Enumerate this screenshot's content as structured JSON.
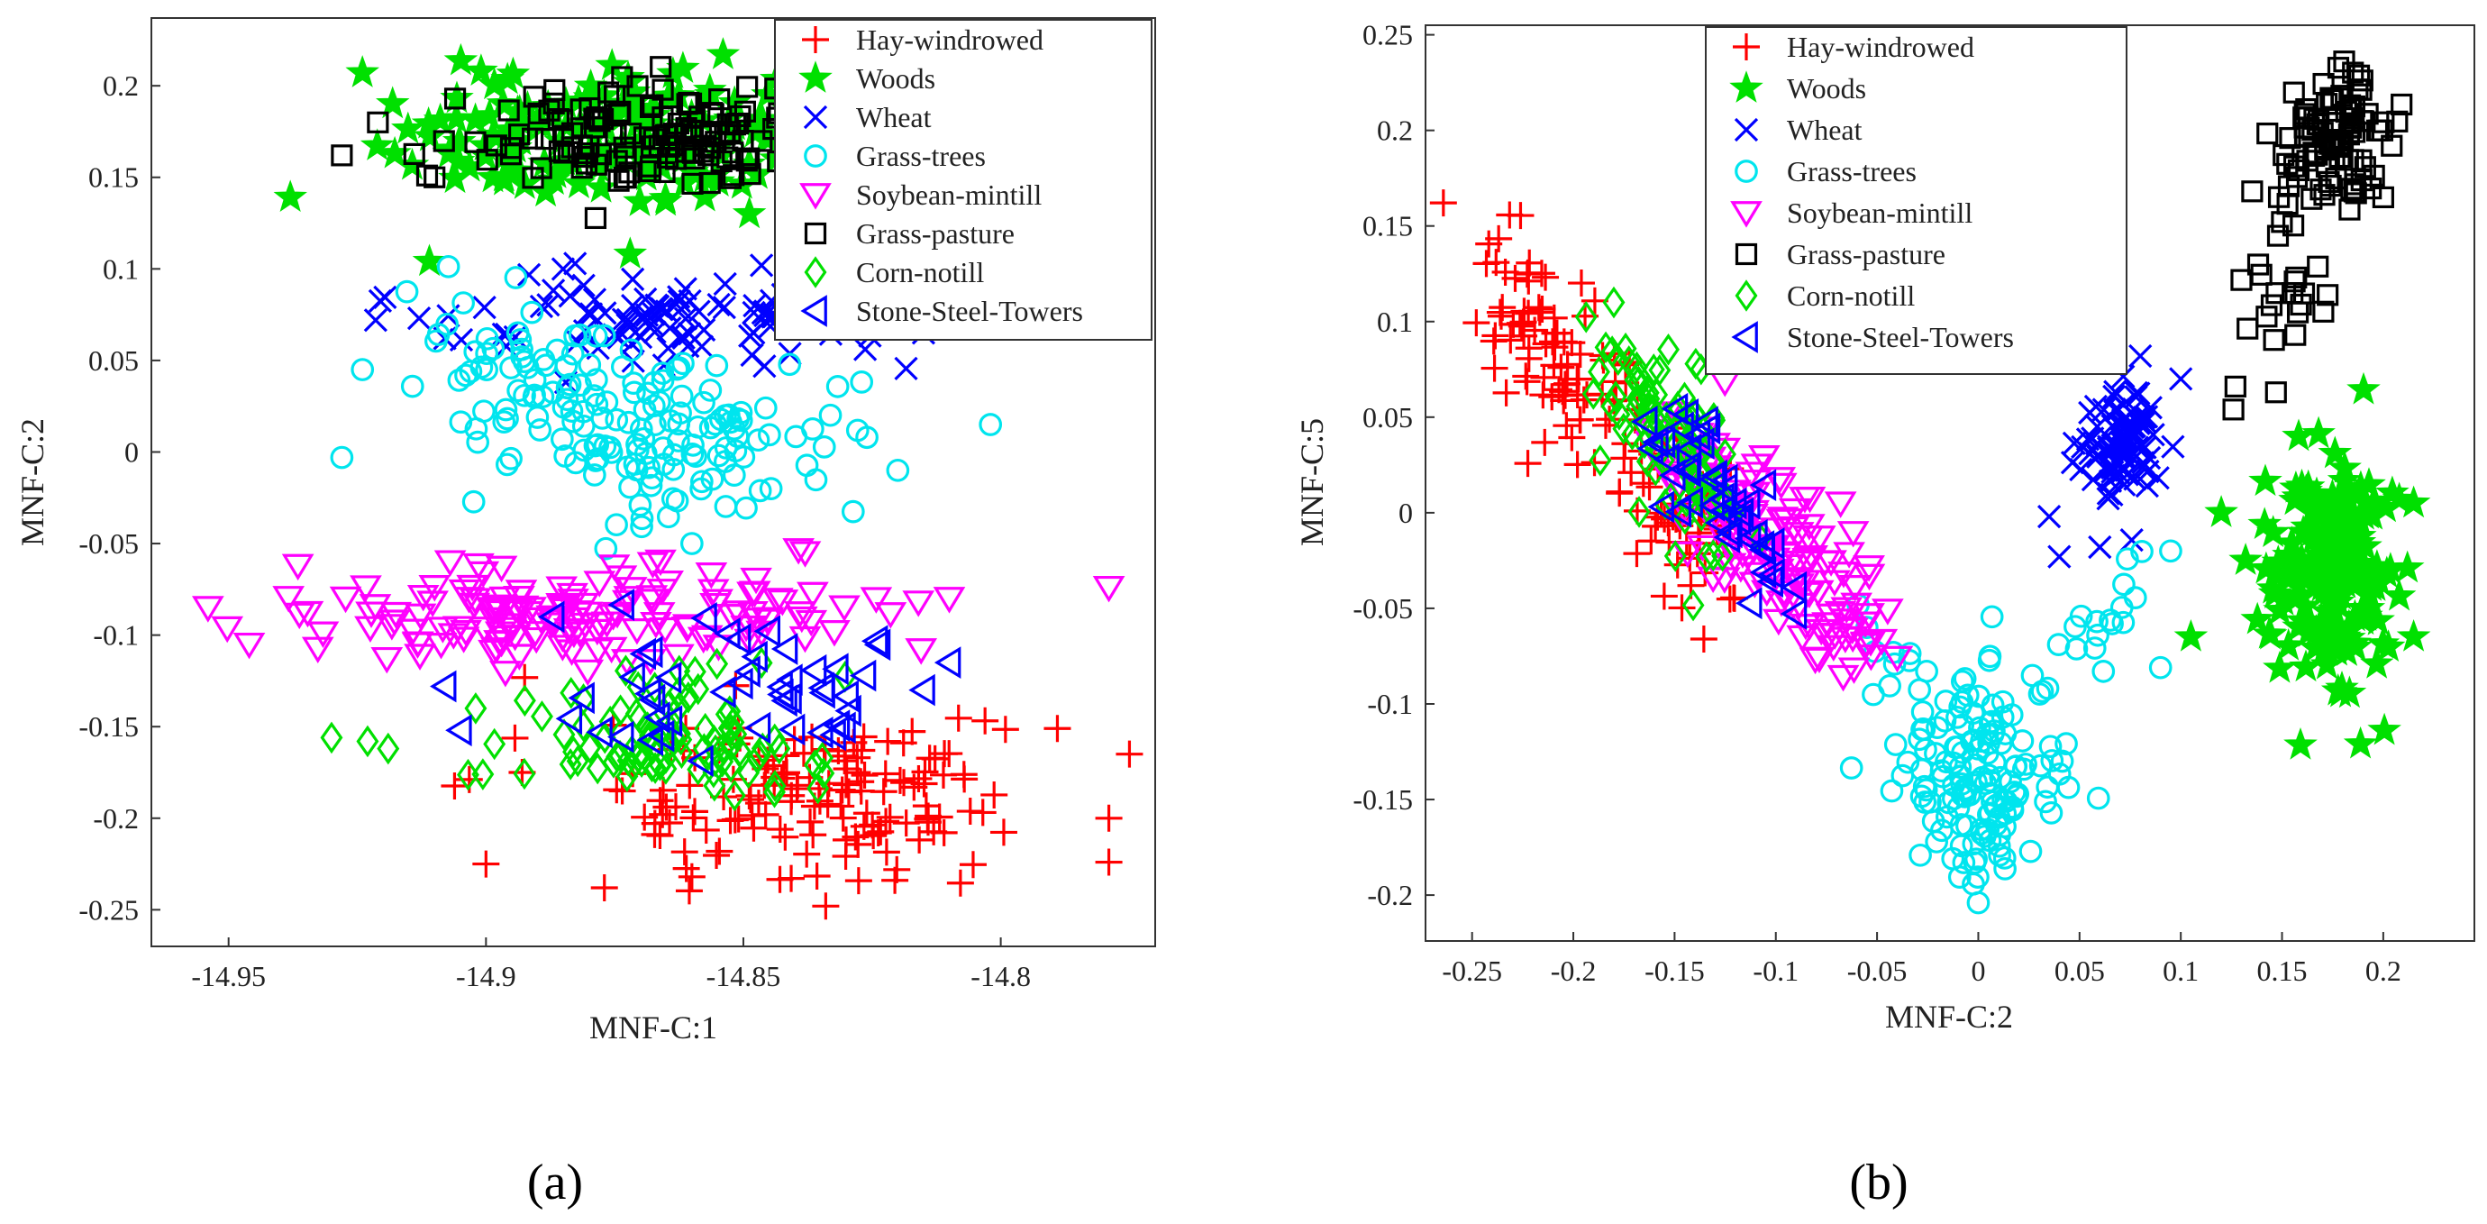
{
  "chart_data": [
    {
      "id": "a",
      "type": "scatter",
      "caption": "(a)",
      "xlabel": "MNF-C:1",
      "ylabel": "MNF-C:2",
      "xlim": [
        -14.965,
        -14.77
      ],
      "ylim": [
        -0.27,
        0.237
      ],
      "xticks": [
        -14.95,
        -14.9,
        -14.85,
        -14.8
      ],
      "xtick_labels": [
        "-14.95",
        "-14.9",
        "-14.85",
        "-14.8"
      ],
      "yticks": [
        -0.25,
        -0.2,
        -0.15,
        -0.1,
        -0.05,
        0,
        0.05,
        0.1,
        0.15,
        0.2
      ],
      "ytick_labels": [
        "-0.25",
        "-0.2",
        "-0.15",
        "-0.1",
        "-0.05",
        "0",
        "0.05",
        "0.1",
        "0.15",
        "0.2"
      ],
      "legend_position": "top-right",
      "series": [
        {
          "name": "Hay-windrowed",
          "marker": "plus",
          "color": "#ff0000",
          "n": 150,
          "clusters": [
            {
              "cx": -14.835,
              "cy": -0.188,
              "sx": 0.018,
              "sy": 0.02,
              "w": 0.85
            },
            {
              "cx": -14.865,
              "cy": -0.17,
              "sx": 0.02,
              "sy": 0.025,
              "w": 0.15
            }
          ],
          "points": [
            [
              -14.9,
              -0.225
            ],
            [
              -14.877,
              -0.238
            ],
            [
              -14.86,
              -0.232
            ],
            [
              -14.834,
              -0.248
            ],
            [
              -14.779,
              -0.224
            ],
            [
              -14.779,
              -0.2
            ],
            [
              -14.775,
              -0.165
            ],
            [
              -14.789,
              -0.151
            ]
          ]
        },
        {
          "name": "Woods",
          "marker": "star",
          "color": "#00e000",
          "n": 160,
          "clusters": [
            {
              "cx": -14.875,
              "cy": 0.172,
              "sx": 0.022,
              "sy": 0.016,
              "w": 1
            }
          ],
          "points": [
            [
              -14.938,
              0.139
            ],
            [
              -14.924,
              0.207
            ],
            [
              -14.911,
              0.104
            ],
            [
              -14.872,
              0.108
            ]
          ]
        },
        {
          "name": "Wheat",
          "marker": "x",
          "color": "#0000ff",
          "n": 95,
          "clusters": [
            {
              "cx": -14.865,
              "cy": 0.072,
              "sx": 0.022,
              "sy": 0.013,
              "w": 1
            }
          ],
          "points": [
            [
              -14.913,
              0.073
            ],
            [
              -14.908,
              0.062
            ],
            [
              -14.815,
              0.065
            ]
          ]
        },
        {
          "name": "Grass-trees",
          "marker": "circle",
          "color": "#00e5ee",
          "n": 170,
          "clusters": [
            {
              "cx": -14.865,
              "cy": 0.012,
              "sx": 0.017,
              "sy": 0.023,
              "w": 0.75
            },
            {
              "cx": -14.895,
              "cy": 0.05,
              "sx": 0.012,
              "sy": 0.02,
              "w": 0.25
            }
          ],
          "points": [
            [
              -14.928,
              -0.003
            ],
            [
              -14.924,
              0.045
            ],
            [
              -14.802,
              0.015
            ],
            [
              -14.82,
              -0.01
            ],
            [
              -14.826,
              0.008
            ],
            [
              -14.86,
              -0.05
            ]
          ]
        },
        {
          "name": "Soybean-mintill",
          "marker": "tridown",
          "color": "#ff00ff",
          "n": 150,
          "clusters": [
            {
              "cx": -14.895,
              "cy": -0.09,
              "sx": 0.022,
              "sy": 0.012,
              "w": 0.75
            },
            {
              "cx": -14.855,
              "cy": -0.085,
              "sx": 0.018,
              "sy": 0.012,
              "w": 0.25
            }
          ],
          "points": [
            [
              -14.954,
              -0.085
            ],
            [
              -14.946,
              -0.105
            ],
            [
              -14.779,
              -0.074
            ],
            [
              -14.81,
              -0.08
            ],
            [
              -14.816,
              -0.082
            ],
            [
              -14.838,
              -0.055
            ]
          ]
        },
        {
          "name": "Grass-pasture",
          "marker": "square",
          "color": "#000000",
          "n": 140,
          "clusters": [
            {
              "cx": -14.868,
              "cy": 0.17,
              "sx": 0.02,
              "sy": 0.016,
              "w": 1
            }
          ],
          "points": [
            [
              -14.928,
              0.162
            ],
            [
              -14.921,
              0.18
            ],
            [
              -14.91,
              0.15
            ],
            [
              -14.906,
              0.193
            ]
          ]
        },
        {
          "name": "Corn-notill",
          "marker": "diamond",
          "color": "#00e000",
          "n": 95,
          "clusters": [
            {
              "cx": -14.865,
              "cy": -0.155,
              "sx": 0.015,
              "sy": 0.016,
              "w": 1
            }
          ],
          "points": [
            [
              -14.93,
              -0.156
            ],
            [
              -14.923,
              -0.158
            ],
            [
              -14.919,
              -0.162
            ],
            [
              -14.902,
              -0.14
            ]
          ]
        },
        {
          "name": "Stone-Steel-Towers",
          "marker": "trileft",
          "color": "#0000ff",
          "n": 45,
          "clusters": [
            {
              "cx": -14.853,
              "cy": -0.128,
              "sx": 0.016,
              "sy": 0.02,
              "w": 1
            }
          ],
          "points": [
            [
              -14.908,
              -0.128
            ],
            [
              -14.905,
              -0.152
            ],
            [
              -14.887,
              -0.09
            ],
            [
              -14.81,
              -0.115
            ],
            [
              -14.815,
              -0.13
            ]
          ]
        }
      ]
    },
    {
      "id": "b",
      "type": "scatter",
      "caption": "(b)",
      "xlabel": "MNF-C:2",
      "ylabel": "MNF-C:5",
      "xlim": [
        -0.273,
        0.245
      ],
      "ylim": [
        -0.224,
        0.255
      ],
      "xticks": [
        -0.25,
        -0.2,
        -0.15,
        -0.1,
        -0.05,
        0,
        0.05,
        0.1,
        0.15,
        0.2
      ],
      "xtick_labels": [
        "-0.25",
        "-0.2",
        "-0.15",
        "-0.1",
        "-0.05",
        "0",
        "0.05",
        "0.1",
        "0.15",
        "0.2"
      ],
      "yticks": [
        -0.2,
        -0.15,
        -0.1,
        -0.05,
        0,
        0.05,
        0.1,
        0.15,
        0.2,
        0.25
      ],
      "ytick_labels": [
        "-0.2",
        "-0.15",
        "-0.1",
        "-0.05",
        "0",
        "0.05",
        "0.1",
        "0.15",
        "0.2",
        "0.25"
      ],
      "legend_position": "top-center",
      "series": [
        {
          "name": "Hay-windrowed",
          "marker": "plus",
          "color": "#ff0000",
          "n": 150,
          "band": {
            "x0": -0.235,
            "y0": 0.125,
            "x1": -0.13,
            "y1": -0.03,
            "sx": 0.014,
            "sy": 0.018
          }
        },
        {
          "name": "Woods",
          "marker": "star",
          "color": "#00e000",
          "n": 200,
          "clusters": [
            {
              "cx": 0.175,
              "cy": -0.03,
              "sx": 0.014,
              "sy": 0.03,
              "w": 1
            }
          ],
          "points": [
            [
              0.12,
              0.0
            ],
            [
              0.105,
              -0.065
            ],
            [
              0.132,
              -0.025
            ],
            [
              0.215,
              -0.065
            ],
            [
              0.215,
              0.005
            ]
          ]
        },
        {
          "name": "Wheat",
          "marker": "x",
          "color": "#0000ff",
          "n": 95,
          "clusters": [
            {
              "cx": 0.072,
              "cy": 0.035,
              "sx": 0.011,
              "sy": 0.016,
              "w": 1
            }
          ],
          "points": [
            [
              0.035,
              -0.002
            ],
            [
              0.04,
              -0.023
            ],
            [
              0.06,
              -0.018
            ],
            [
              0.1,
              0.07
            ],
            [
              0.08,
              0.082
            ]
          ]
        },
        {
          "name": "Grass-trees",
          "marker": "circle",
          "color": "#00e5ee",
          "n": 170,
          "clusters": [
            {
              "cx": 0.0,
              "cy": -0.135,
              "sx": 0.02,
              "sy": 0.028,
              "w": 0.85
            }
          ],
          "band": {
            "x0": -0.06,
            "y0": -0.065,
            "x1": -0.02,
            "y1": -0.095,
            "sx": 0.006,
            "sy": 0.008,
            "w": 0.05
          },
          "band2": {
            "x0": 0.03,
            "y0": -0.08,
            "x1": 0.09,
            "y1": -0.03,
            "sx": 0.006,
            "sy": 0.012
          },
          "points": [
            [
              0.0,
              -0.204
            ],
            [
              0.09,
              -0.081
            ],
            [
              0.095,
              -0.02
            ],
            [
              -0.055,
              -0.06
            ]
          ]
        },
        {
          "name": "Soybean-mintill",
          "marker": "tridown",
          "color": "#ff00ff",
          "n": 150,
          "band": {
            "x0": -0.15,
            "y0": 0.035,
            "x1": -0.06,
            "y1": -0.065,
            "sx": 0.012,
            "sy": 0.016
          },
          "points": [
            [
              -0.068,
              0.005
            ],
            [
              -0.053,
              -0.075
            ]
          ]
        },
        {
          "name": "Grass-pasture",
          "marker": "square",
          "color": "#000000",
          "n": 120,
          "clusters": [
            {
              "cx": 0.175,
              "cy": 0.195,
              "sx": 0.013,
              "sy": 0.018,
              "w": 0.8
            },
            {
              "cx": 0.15,
              "cy": 0.12,
              "sx": 0.01,
              "sy": 0.025,
              "w": 0.2
            }
          ],
          "points": [
            [
              0.126,
              0.054
            ],
            [
              0.127,
              0.066
            ],
            [
              0.147,
              0.063
            ],
            [
              0.2,
              0.165
            ],
            [
              0.198,
              0.2
            ]
          ]
        },
        {
          "name": "Corn-notill",
          "marker": "diamond",
          "color": "#00e000",
          "n": 90,
          "band": {
            "x0": -0.18,
            "y0": 0.09,
            "x1": -0.125,
            "y1": -0.005,
            "sx": 0.012,
            "sy": 0.016
          },
          "points": [
            [
              -0.18,
              0.11
            ]
          ]
        },
        {
          "name": "Stone-Steel-Towers",
          "marker": "trileft",
          "color": "#0000ff",
          "n": 45,
          "band": {
            "x0": -0.16,
            "y0": 0.055,
            "x1": -0.095,
            "y1": -0.045,
            "sx": 0.01,
            "sy": 0.012
          }
        }
      ]
    }
  ]
}
